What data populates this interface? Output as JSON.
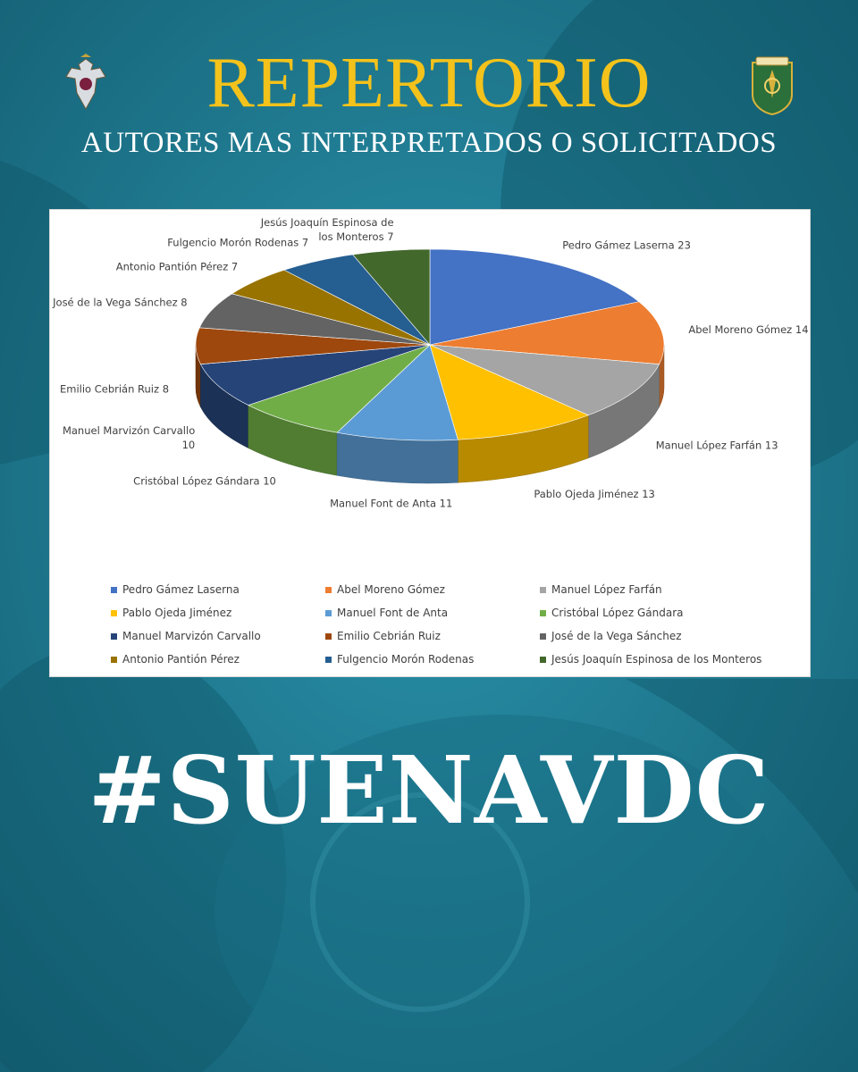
{
  "header": {
    "title": "REPERTORIO",
    "subtitle": "AUTORES MAS INTERPRETADOS O SOLICITADOS"
  },
  "icons": {
    "left_crest": "heraldic-crest-icon",
    "right_crest": "band-emblem-icon"
  },
  "colors": {
    "background": "#1e7f96",
    "title": "#f3c21b",
    "text": "#ffffff"
  },
  "chart_data": {
    "type": "pie",
    "categories": [
      "Pedro Gámez Laserna",
      "Abel Moreno Gómez",
      "Manuel López Farfán",
      "Pablo Ojeda Jiménez",
      "Manuel Font de Anta",
      "Cristóbal López Gándara",
      "Manuel Marvizón Carvallo",
      "Emilio Cebrián Ruiz",
      "José de la Vega Sánchez",
      "Antonio Pantión Pérez",
      "Fulgencio Morón Rodenas",
      "Jesús Joaquín Espinosa de los Monteros"
    ],
    "values": [
      23,
      14,
      13,
      13,
      11,
      10,
      10,
      8,
      8,
      7,
      7,
      7
    ],
    "colors": [
      "#4472c4",
      "#ed7d31",
      "#a5a5a5",
      "#ffc000",
      "#5b9bd5",
      "#70ad47",
      "#264478",
      "#9e480e",
      "#636363",
      "#997300",
      "#255e91",
      "#43682b"
    ],
    "data_labels": [
      "Pedro Gámez Laserna 23",
      "Abel Moreno Gómez 14",
      "Manuel López Farfán 13",
      "Pablo Ojeda Jiménez 13",
      "Manuel Font de Anta 11",
      "Cristóbal López Gándara 10",
      "Manuel Marvizón Carvallo 10",
      "Emilio Cebrián Ruiz 8",
      "José de la Vega Sánchez 8",
      "Antonio Pantión Pérez 7",
      "Fulgencio Morón Rodenas 7",
      "Jesús Joaquín Espinosa de los Monteros 7"
    ],
    "legend_position": "bottom",
    "style": "3d-pie"
  },
  "footer": {
    "hashtag": "#SUENAVDC"
  }
}
